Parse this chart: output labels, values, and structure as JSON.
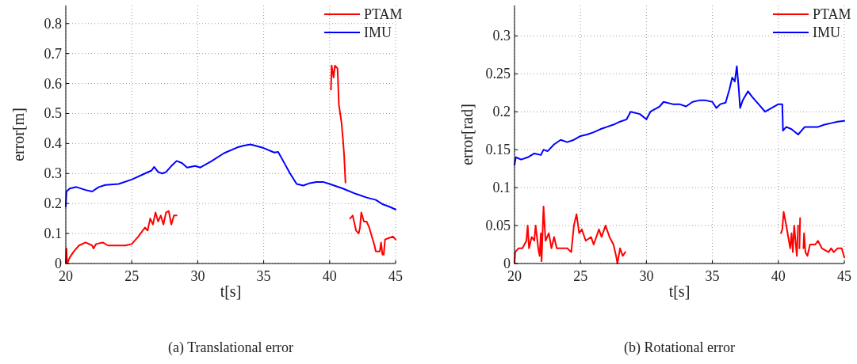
{
  "chart_data": [
    {
      "type": "line",
      "xlabel": "t[s]",
      "ylabel": "error[m]",
      "annotations": [
        "(a) Translational error"
      ],
      "xlim": [
        20,
        45
      ],
      "ylim": [
        0,
        0.86
      ],
      "xticks": [
        20,
        25,
        30,
        35,
        40,
        45
      ],
      "yticks": [
        0,
        0.1,
        0.2,
        0.3,
        0.4,
        0.5,
        0.6,
        0.7,
        0.8
      ],
      "grid": true,
      "legend": "top right",
      "line_style": "solid",
      "series": [
        {
          "name": "PTAM",
          "color": "#ff0000",
          "x": [
            20.0,
            20.05,
            20.1,
            20.3,
            20.6,
            21.0,
            21.5,
            22.0,
            22.1,
            22.3,
            22.8,
            23.2,
            24.0,
            24.5,
            25.0,
            25.5,
            26.0,
            26.2,
            26.4,
            26.6,
            26.8,
            27.0,
            27.2,
            27.4,
            27.6,
            27.8,
            28.0,
            28.2,
            28.4,
            28.5,
            40.1,
            40.15,
            40.3,
            40.4,
            40.6,
            40.7,
            40.8,
            40.9,
            41.0,
            41.1,
            41.2,
            41.4,
            41.55,
            41.75,
            42.0,
            42.2,
            42.3,
            42.4,
            42.6,
            42.8,
            43.0,
            43.2,
            43.4,
            43.5,
            43.8,
            43.9,
            44.0,
            44.1,
            44.2,
            44.5,
            44.8,
            45.0
          ],
          "values": [
            0.0,
            0.05,
            0.0,
            0.02,
            0.04,
            0.06,
            0.07,
            0.06,
            0.05,
            0.065,
            0.07,
            0.06,
            0.06,
            0.06,
            0.065,
            0.09,
            0.12,
            0.11,
            0.15,
            0.13,
            0.17,
            0.14,
            0.16,
            0.13,
            0.17,
            0.175,
            0.13,
            0.16,
            0.16,
            null,
            0.58,
            0.66,
            0.62,
            0.66,
            0.65,
            0.53,
            0.5,
            0.47,
            0.42,
            0.36,
            0.27,
            null,
            0.15,
            0.16,
            0.11,
            0.1,
            0.12,
            0.17,
            0.14,
            0.14,
            0.12,
            0.09,
            0.06,
            0.04,
            0.04,
            0.07,
            0.03,
            0.03,
            0.08,
            0.085,
            0.09,
            0.08
          ]
        },
        {
          "name": "IMU",
          "color": "#0000ff",
          "x": [
            20.0,
            20.05,
            20.3,
            20.8,
            21.5,
            22.0,
            22.5,
            23.0,
            24.0,
            25.0,
            26.0,
            26.5,
            26.7,
            27.0,
            27.3,
            27.6,
            28.0,
            28.4,
            28.8,
            29.2,
            29.8,
            30.2,
            31.0,
            32.0,
            33.0,
            33.5,
            34.0,
            35.0,
            35.8,
            36.1,
            36.5,
            37.0,
            37.5,
            38.0,
            38.5,
            39.0,
            39.5,
            40.0,
            41.0,
            42.0,
            42.8,
            43.5,
            44.0,
            44.5,
            45.0
          ],
          "values": [
            0.19,
            0.24,
            0.25,
            0.255,
            0.245,
            0.24,
            0.255,
            0.262,
            0.265,
            0.28,
            0.3,
            0.31,
            0.322,
            0.305,
            0.3,
            0.305,
            0.325,
            0.342,
            0.335,
            0.32,
            0.325,
            0.32,
            0.34,
            0.368,
            0.387,
            0.393,
            0.397,
            0.385,
            0.37,
            0.372,
            0.34,
            0.3,
            0.265,
            0.26,
            0.268,
            0.272,
            0.272,
            0.265,
            0.25,
            0.232,
            0.22,
            0.212,
            0.198,
            0.19,
            0.18
          ]
        }
      ]
    },
    {
      "type": "line",
      "xlabel": "t[s]",
      "ylabel": "error[rad]",
      "annotations": [
        "(b) Rotational error"
      ],
      "xlim": [
        20,
        45
      ],
      "ylim": [
        0,
        0.34
      ],
      "xticks": [
        20,
        25,
        30,
        35,
        40,
        45
      ],
      "yticks": [
        0,
        0.05,
        0.1,
        0.15,
        0.2,
        0.25,
        0.3
      ],
      "grid": true,
      "legend": "top right",
      "line_style": "solid",
      "series": [
        {
          "name": "PTAM",
          "color": "#ff0000",
          "x": [
            20.0,
            20.05,
            20.3,
            20.6,
            20.9,
            21.0,
            21.1,
            21.3,
            21.5,
            21.6,
            21.8,
            21.9,
            22.0,
            22.05,
            22.2,
            22.35,
            22.6,
            22.8,
            23.0,
            23.2,
            23.6,
            24.0,
            24.3,
            24.5,
            24.7,
            24.9,
            25.1,
            25.4,
            25.8,
            26.0,
            26.4,
            26.6,
            26.9,
            27.2,
            27.5,
            27.7,
            27.8,
            28.0,
            28.2,
            28.4,
            28.5,
            40.2,
            40.3,
            40.4,
            40.6,
            40.8,
            40.9,
            41.0,
            41.1,
            41.2,
            41.3,
            41.4,
            41.5,
            41.55,
            41.6,
            41.65,
            41.7,
            41.9,
            41.95,
            42.05,
            42.2,
            42.4,
            42.8,
            43.0,
            43.3,
            43.8,
            44.0,
            44.2,
            44.5,
            44.8,
            45.0
          ],
          "values": [
            0.0,
            0.015,
            0.02,
            0.02,
            0.03,
            0.05,
            0.02,
            0.035,
            0.03,
            0.05,
            0.02,
            0.01,
            0.04,
            0.003,
            0.075,
            0.03,
            0.04,
            0.02,
            0.035,
            0.02,
            0.02,
            0.02,
            0.015,
            0.05,
            0.065,
            0.04,
            0.045,
            0.03,
            0.035,
            0.025,
            0.045,
            0.035,
            0.05,
            0.035,
            0.025,
            0.01,
            0.0,
            0.02,
            0.01,
            0.015,
            null,
            0.04,
            0.045,
            0.068,
            0.05,
            0.03,
            0.02,
            0.04,
            0.015,
            0.05,
            0.03,
            0.01,
            0.05,
            null,
            0.02,
            0.06,
            null,
            0.02,
            0.04,
            0.015,
            0.01,
            0.025,
            0.025,
            0.03,
            0.02,
            0.015,
            0.02,
            0.015,
            0.02,
            0.02,
            0.008
          ]
        },
        {
          "name": "IMU",
          "color": "#0000ff",
          "x": [
            20.0,
            20.1,
            20.5,
            21.0,
            21.5,
            22.0,
            22.2,
            22.5,
            23.0,
            23.5,
            24.0,
            24.5,
            25.0,
            25.5,
            26.0,
            26.5,
            27.0,
            27.5,
            28.0,
            28.5,
            28.8,
            29.5,
            30.0,
            30.3,
            31.0,
            31.3,
            32.0,
            32.5,
            33.0,
            33.5,
            34.0,
            34.5,
            35.0,
            35.3,
            35.6,
            36.0,
            36.3,
            36.5,
            36.7,
            36.85,
            37.0,
            37.1,
            37.3,
            37.7,
            38.0,
            38.5,
            39.0,
            39.5,
            40.0,
            40.3,
            40.35,
            40.6,
            41.0,
            41.5,
            42.0,
            42.5,
            43.0,
            43.5,
            44.0,
            44.5,
            45.0
          ],
          "values": [
            0.13,
            0.14,
            0.137,
            0.14,
            0.145,
            0.143,
            0.15,
            0.148,
            0.157,
            0.163,
            0.16,
            0.163,
            0.168,
            0.17,
            0.173,
            0.177,
            0.18,
            0.183,
            0.187,
            0.19,
            0.2,
            0.197,
            0.19,
            0.2,
            0.207,
            0.213,
            0.21,
            0.21,
            0.207,
            0.213,
            0.215,
            0.215,
            0.213,
            0.205,
            0.21,
            0.212,
            0.23,
            0.245,
            0.24,
            0.26,
            0.23,
            0.205,
            0.215,
            0.227,
            0.22,
            0.21,
            0.2,
            0.205,
            0.21,
            0.21,
            0.175,
            0.18,
            0.177,
            0.17,
            0.18,
            0.18,
            0.18,
            0.183,
            0.185,
            0.187,
            0.188
          ]
        }
      ]
    }
  ]
}
